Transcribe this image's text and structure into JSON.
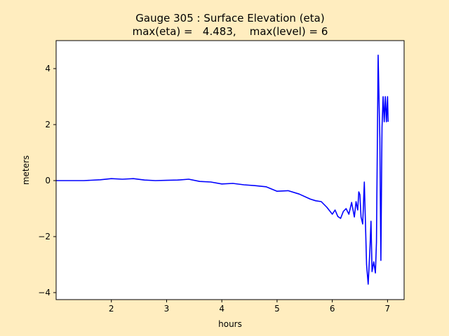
{
  "chart_data": {
    "type": "line",
    "title_line1": "Gauge 305 : Surface Elevation (eta)",
    "title_line2": "max(eta) =   4.483,    max(level) = 6",
    "xlabel": "hours",
    "ylabel": "meters",
    "xlim": [
      1.0,
      7.3
    ],
    "ylim": [
      -4.25,
      5.0
    ],
    "xticks": [
      2,
      3,
      4,
      5,
      6,
      7
    ],
    "xtick_labels": [
      "2",
      "3",
      "4",
      "5",
      "6",
      "7"
    ],
    "yticks": [
      -4,
      -2,
      0,
      2,
      4
    ],
    "ytick_labels": [
      "−4",
      "−2",
      "0",
      "2",
      "4"
    ],
    "grid": false,
    "series": [
      {
        "name": "eta",
        "color": "#0000ff",
        "x": [
          1.0,
          1.5,
          1.8,
          2.0,
          2.2,
          2.4,
          2.6,
          2.8,
          3.0,
          3.2,
          3.4,
          3.6,
          3.8,
          4.0,
          4.2,
          4.4,
          4.6,
          4.8,
          5.0,
          5.2,
          5.4,
          5.6,
          5.7,
          5.8,
          5.9,
          6.0,
          6.05,
          6.1,
          6.15,
          6.2,
          6.25,
          6.3,
          6.35,
          6.4,
          6.43,
          6.46,
          6.48,
          6.5,
          6.52,
          6.55,
          6.58,
          6.6,
          6.62,
          6.65,
          6.68,
          6.7,
          6.72,
          6.75,
          6.78,
          6.8,
          6.83,
          6.86,
          6.88,
          6.9,
          6.92,
          6.94,
          6.96,
          6.98,
          7.0,
          7.01
        ],
        "y": [
          0.0,
          0.0,
          0.03,
          0.07,
          0.05,
          0.07,
          0.02,
          0.0,
          0.01,
          0.02,
          0.05,
          -0.03,
          -0.05,
          -0.12,
          -0.1,
          -0.15,
          -0.18,
          -0.22,
          -0.38,
          -0.36,
          -0.48,
          -0.66,
          -0.72,
          -0.75,
          -0.95,
          -1.2,
          -1.05,
          -1.28,
          -1.35,
          -1.1,
          -1.0,
          -1.2,
          -0.78,
          -1.3,
          -0.75,
          -1.05,
          -0.4,
          -0.5,
          -1.3,
          -1.55,
          -0.05,
          -1.5,
          -3.0,
          -3.7,
          -2.5,
          -1.45,
          -3.25,
          -2.9,
          -3.3,
          -2.2,
          4.48,
          1.5,
          -2.85,
          1.9,
          3.0,
          2.1,
          3.0,
          2.1,
          3.0,
          2.1
        ]
      }
    ]
  }
}
